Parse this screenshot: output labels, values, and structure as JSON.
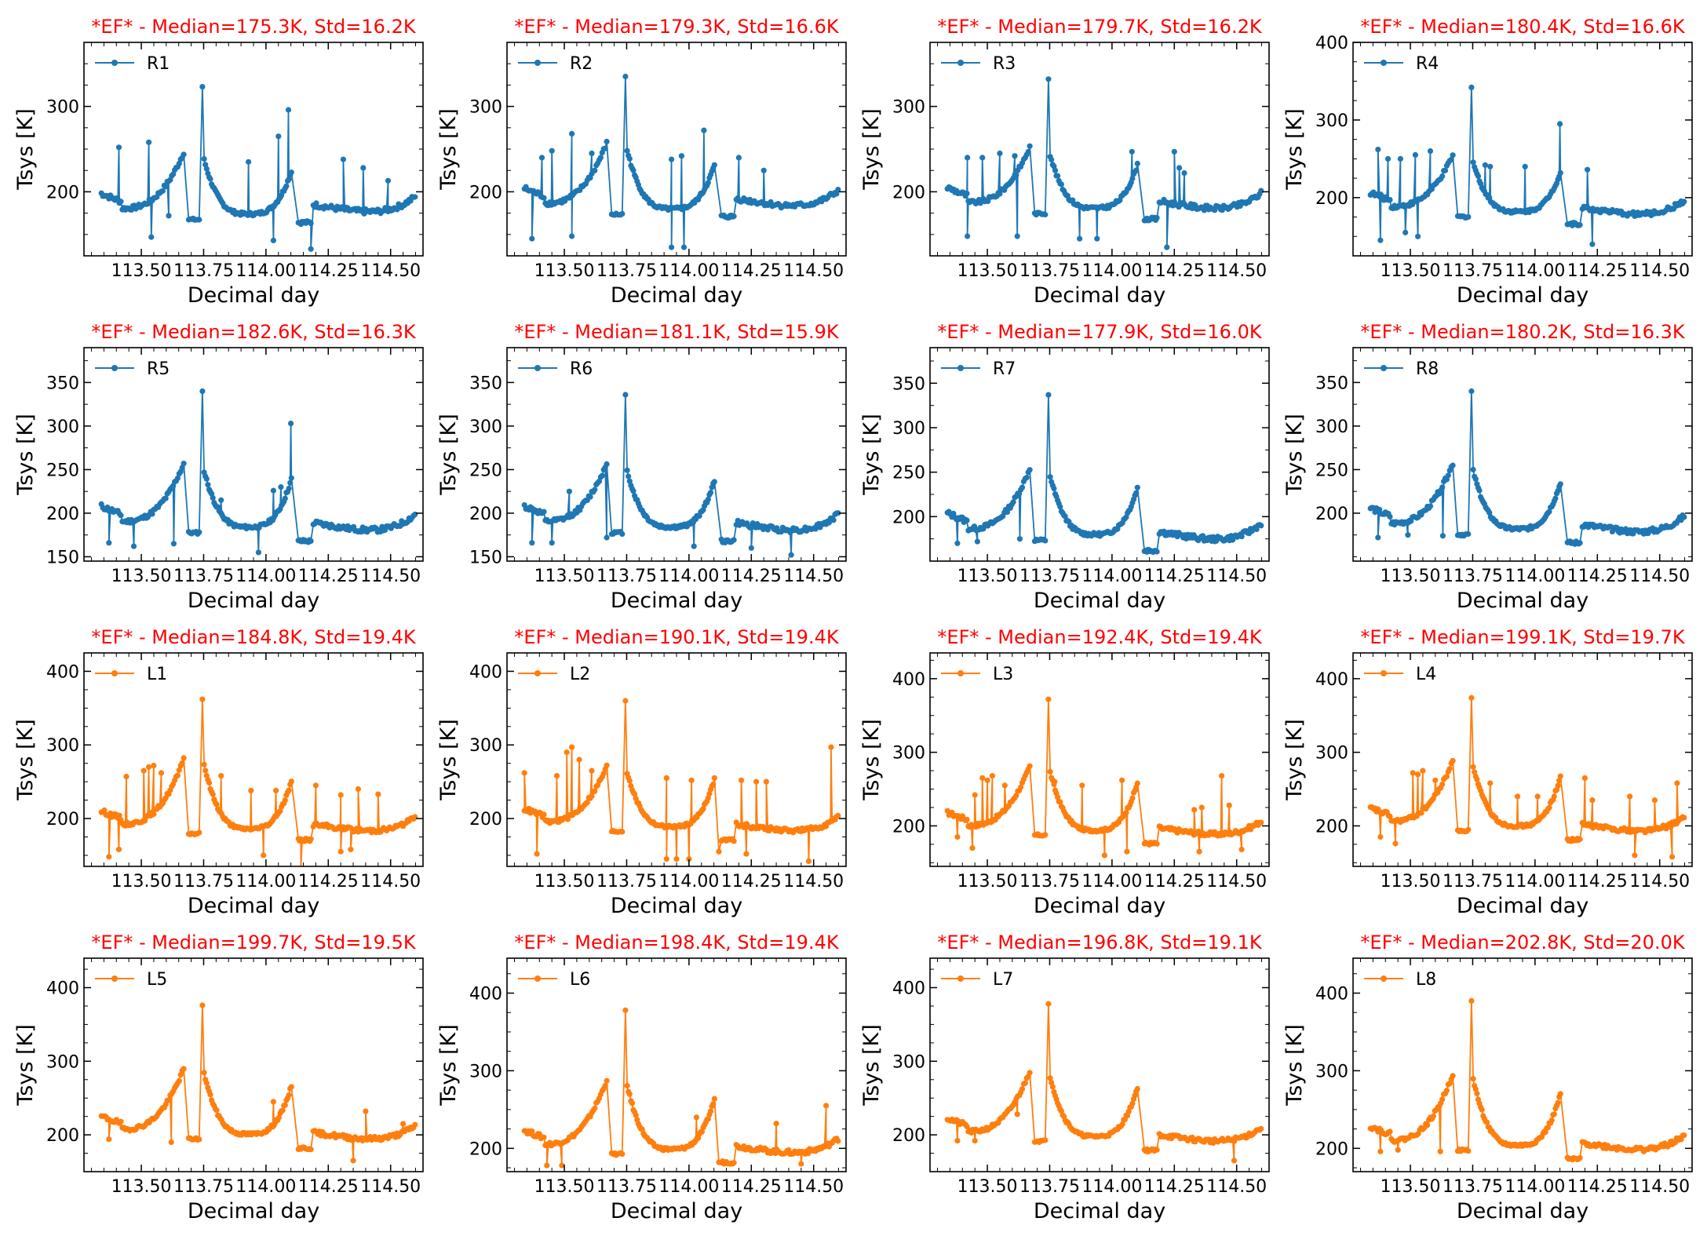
{
  "colors": {
    "R": "#1f77b4",
    "L": "#ff7f0e",
    "title": "#ff0000"
  },
  "chart_data": [
    {
      "type": "line",
      "channel": "R1",
      "title": "*EF* - Median=175.3K, Std=16.2K",
      "xlabel": "Decimal day",
      "ylabel": "Tsys [K]",
      "color": "#1f77b4",
      "ylim": [
        125,
        375
      ],
      "yticks": [
        200,
        300
      ],
      "xlim": [
        113.27,
        114.63
      ],
      "xticks": [
        "113.50",
        "113.75",
        "114.00",
        "114.25",
        "114.50"
      ],
      "median": 175.3,
      "std": 16.2,
      "peak1": 247,
      "peak2": 225,
      "floor": 170,
      "tail": 168,
      "spike": 323,
      "spikes": [
        [
          113.41,
          252
        ],
        [
          113.53,
          258
        ],
        [
          113.93,
          235
        ],
        [
          114.05,
          265
        ],
        [
          114.09,
          296
        ],
        [
          114.31,
          238
        ],
        [
          114.39,
          228
        ],
        [
          114.49,
          213
        ],
        [
          113.54,
          147
        ],
        [
          113.61,
          172
        ],
        [
          114.03,
          143
        ],
        [
          114.18,
          133
        ]
      ],
      "legend_label": "R1"
    },
    {
      "type": "line",
      "channel": "R2",
      "title": "*EF* - Median=179.3K, Std=16.6K",
      "xlabel": "Decimal day",
      "ylabel": "Tsys [K]",
      "color": "#1f77b4",
      "ylim": [
        125,
        375
      ],
      "yticks": [
        200,
        300
      ],
      "xlim": [
        113.27,
        114.63
      ],
      "xticks": [
        "113.50",
        "113.75",
        "114.00",
        "114.25",
        "114.50"
      ],
      "median": 179.3,
      "std": 16.6,
      "peak1": 258,
      "peak2": 232,
      "floor": 176,
      "tail": 175,
      "spike": 335,
      "spikes": [
        [
          113.41,
          240
        ],
        [
          113.45,
          248
        ],
        [
          113.53,
          268
        ],
        [
          113.61,
          245
        ],
        [
          113.93,
          238
        ],
        [
          113.97,
          242
        ],
        [
          114.06,
          272
        ],
        [
          114.2,
          240
        ],
        [
          114.3,
          225
        ],
        [
          113.37,
          145
        ],
        [
          113.53,
          148
        ],
        [
          113.93,
          135
        ],
        [
          113.98,
          135
        ]
      ],
      "legend_label": "R2"
    },
    {
      "type": "line",
      "channel": "R3",
      "title": "*EF* - Median=179.7K, Std=16.2K",
      "xlabel": "Decimal day",
      "ylabel": "Tsys [K]",
      "color": "#1f77b4",
      "ylim": [
        125,
        375
      ],
      "yticks": [
        200,
        300
      ],
      "xlim": [
        113.27,
        114.63
      ],
      "xticks": [
        "113.50",
        "113.75",
        "114.00",
        "114.25",
        "114.50"
      ],
      "median": 179.7,
      "std": 16.2,
      "peak1": 253,
      "peak2": 232,
      "floor": 177,
      "tail": 172,
      "spike": 332,
      "spikes": [
        [
          113.42,
          240
        ],
        [
          113.48,
          240
        ],
        [
          113.55,
          245
        ],
        [
          113.61,
          242
        ],
        [
          114.08,
          247
        ],
        [
          114.25,
          247
        ],
        [
          114.27,
          228
        ],
        [
          114.29,
          222
        ],
        [
          113.42,
          148
        ],
        [
          113.62,
          148
        ],
        [
          113.87,
          145
        ],
        [
          113.94,
          145
        ],
        [
          114.22,
          135
        ]
      ],
      "legend_label": "R3"
    },
    {
      "type": "line",
      "channel": "R4",
      "title": "*EF* - Median=180.4K, Std=16.6K",
      "xlabel": "Decimal day",
      "ylabel": "Tsys [K]",
      "color": "#1f77b4",
      "ylim": [
        125,
        400
      ],
      "yticks": [
        200,
        300,
        400
      ],
      "xlim": [
        113.27,
        114.63
      ],
      "xticks": [
        "113.50",
        "113.75",
        "114.00",
        "114.25",
        "114.50"
      ],
      "median": 180.4,
      "std": 16.6,
      "peak1": 255,
      "peak2": 233,
      "floor": 178,
      "tail": 170,
      "spike": 342,
      "spikes": [
        [
          113.37,
          262
        ],
        [
          113.41,
          250
        ],
        [
          113.46,
          250
        ],
        [
          113.52,
          255
        ],
        [
          113.58,
          260
        ],
        [
          113.8,
          242
        ],
        [
          113.82,
          240
        ],
        [
          113.96,
          240
        ],
        [
          114.1,
          295
        ],
        [
          114.21,
          236
        ],
        [
          113.38,
          145
        ],
        [
          113.48,
          155
        ],
        [
          113.53,
          150
        ],
        [
          114.23,
          140
        ]
      ],
      "legend_label": "R4"
    },
    {
      "type": "line",
      "channel": "R5",
      "title": "*EF* - Median=182.6K, Std=16.3K",
      "xlabel": "Decimal day",
      "ylabel": "Tsys [K]",
      "color": "#1f77b4",
      "ylim": [
        145,
        390
      ],
      "yticks": [
        150,
        200,
        250,
        300,
        350
      ],
      "xlim": [
        113.27,
        114.63
      ],
      "xticks": [
        "113.50",
        "113.75",
        "114.00",
        "114.25",
        "114.50"
      ],
      "median": 182.6,
      "std": 16.3,
      "peak1": 258,
      "peak2": 240,
      "floor": 180,
      "tail": 172,
      "spike": 340,
      "spikes": [
        [
          113.82,
          215
        ],
        [
          114.03,
          226
        ],
        [
          114.06,
          230
        ],
        [
          114.1,
          303
        ],
        [
          113.37,
          166
        ],
        [
          113.47,
          162
        ],
        [
          113.63,
          165
        ],
        [
          113.97,
          155
        ]
      ],
      "legend_label": "R5"
    },
    {
      "type": "line",
      "channel": "R6",
      "title": "*EF* - Median=181.1K, Std=15.9K",
      "xlabel": "Decimal day",
      "ylabel": "Tsys [K]",
      "color": "#1f77b4",
      "ylim": [
        145,
        390
      ],
      "yticks": [
        150,
        200,
        250,
        300,
        350
      ],
      "xlim": [
        113.27,
        114.63
      ],
      "xticks": [
        "113.50",
        "113.75",
        "114.00",
        "114.25",
        "114.50"
      ],
      "median": 181.1,
      "std": 15.9,
      "peak1": 258,
      "peak2": 238,
      "floor": 180,
      "tail": 172,
      "spike": 336,
      "spikes": [
        [
          113.52,
          225
        ],
        [
          113.37,
          166
        ],
        [
          113.45,
          166
        ],
        [
          113.67,
          172
        ],
        [
          114.02,
          162
        ],
        [
          114.25,
          160
        ],
        [
          114.41,
          152
        ]
      ],
      "legend_label": "R6"
    },
    {
      "type": "line",
      "channel": "R7",
      "title": "*EF* - Median=177.9K, Std=16.0K",
      "xlabel": "Decimal day",
      "ylabel": "Tsys [K]",
      "color": "#1f77b4",
      "ylim": [
        150,
        390
      ],
      "yticks": [
        200,
        250,
        300,
        350
      ],
      "xlim": [
        113.27,
        114.63
      ],
      "xticks": [
        "113.50",
        "113.75",
        "114.00",
        "114.25",
        "114.50"
      ],
      "median": 177.9,
      "std": 16.0,
      "peak1": 255,
      "peak2": 233,
      "floor": 176,
      "tail": 166,
      "spike": 337,
      "spikes": [
        [
          113.38,
          170
        ],
        [
          113.46,
          172
        ],
        [
          113.63,
          175
        ]
      ],
      "legend_label": "R7"
    },
    {
      "type": "line",
      "channel": "R8",
      "title": "*EF* - Median=180.2K, Std=16.3K",
      "xlabel": "Decimal day",
      "ylabel": "Tsys [K]",
      "color": "#1f77b4",
      "ylim": [
        145,
        390
      ],
      "yticks": [
        200,
        250,
        300,
        350
      ],
      "xlim": [
        113.27,
        114.63
      ],
      "xticks": [
        "113.50",
        "113.75",
        "114.00",
        "114.25",
        "114.50"
      ],
      "median": 180.2,
      "std": 16.3,
      "peak1": 258,
      "peak2": 236,
      "floor": 178,
      "tail": 170,
      "spike": 340,
      "spikes": [
        [
          113.37,
          172
        ],
        [
          113.49,
          175
        ],
        [
          113.63,
          174
        ]
      ],
      "legend_label": "R8"
    },
    {
      "type": "line",
      "channel": "L1",
      "title": "*EF* - Median=184.8K, Std=19.4K",
      "xlabel": "Decimal day",
      "ylabel": "Tsys [K]",
      "color": "#ff7f0e",
      "ylim": [
        135,
        425
      ],
      "yticks": [
        200,
        300,
        400
      ],
      "xlim": [
        113.27,
        114.63
      ],
      "xticks": [
        "113.50",
        "113.75",
        "114.00",
        "114.25",
        "114.50"
      ],
      "median": 184.8,
      "std": 19.4,
      "peak1": 282,
      "peak2": 252,
      "floor": 182,
      "tail": 175,
      "spike": 362,
      "spikes": [
        [
          113.44,
          257
        ],
        [
          113.51,
          265
        ],
        [
          113.53,
          270
        ],
        [
          113.55,
          272
        ],
        [
          113.58,
          262
        ],
        [
          113.82,
          258
        ],
        [
          113.94,
          238
        ],
        [
          114.04,
          238
        ],
        [
          114.2,
          245
        ],
        [
          114.3,
          232
        ],
        [
          114.37,
          240
        ],
        [
          114.45,
          233
        ],
        [
          113.37,
          148
        ],
        [
          113.41,
          158
        ],
        [
          113.99,
          150
        ],
        [
          114.14,
          132
        ],
        [
          114.3,
          155
        ],
        [
          114.34,
          158
        ]
      ],
      "legend_label": "L1"
    },
    {
      "type": "line",
      "channel": "L2",
      "title": "*EF* - Median=190.1K, Std=19.4K",
      "xlabel": "Decimal day",
      "ylabel": "Tsys [K]",
      "color": "#ff7f0e",
      "ylim": [
        135,
        425
      ],
      "yticks": [
        200,
        300,
        400
      ],
      "xlim": [
        113.27,
        114.63
      ],
      "xticks": [
        "113.50",
        "113.75",
        "114.00",
        "114.25",
        "114.50"
      ],
      "median": 190.1,
      "std": 19.4,
      "peak1": 272,
      "peak2": 255,
      "floor": 185,
      "tail": 175,
      "spike": 360,
      "spikes": [
        [
          113.34,
          262
        ],
        [
          113.47,
          258
        ],
        [
          113.51,
          290
        ],
        [
          113.53,
          297
        ],
        [
          113.56,
          280
        ],
        [
          113.61,
          265
        ],
        [
          113.91,
          255
        ],
        [
          114.01,
          252
        ],
        [
          114.21,
          252
        ],
        [
          114.27,
          250
        ],
        [
          114.31,
          250
        ],
        [
          114.57,
          297
        ],
        [
          113.39,
          152
        ],
        [
          113.91,
          145
        ],
        [
          113.95,
          145
        ],
        [
          114.0,
          145
        ],
        [
          114.12,
          155
        ],
        [
          114.23,
          152
        ],
        [
          114.48,
          142
        ]
      ],
      "legend_label": "L2"
    },
    {
      "type": "line",
      "channel": "L3",
      "title": "*EF* - Median=192.4K, Std=19.4K",
      "xlabel": "Decimal day",
      "ylabel": "Tsys [K]",
      "color": "#ff7f0e",
      "ylim": [
        145,
        435
      ],
      "yticks": [
        200,
        300,
        400
      ],
      "xlim": [
        113.27,
        114.63
      ],
      "xticks": [
        "113.50",
        "113.75",
        "114.00",
        "114.25",
        "114.50"
      ],
      "median": 192.4,
      "std": 19.4,
      "peak1": 282,
      "peak2": 260,
      "floor": 190,
      "tail": 180,
      "spike": 372,
      "spikes": [
        [
          113.45,
          242
        ],
        [
          113.48,
          265
        ],
        [
          113.5,
          262
        ],
        [
          113.52,
          268
        ],
        [
          113.57,
          255
        ],
        [
          113.77,
          260
        ],
        [
          113.88,
          255
        ],
        [
          114.04,
          262
        ],
        [
          114.33,
          222
        ],
        [
          114.36,
          225
        ],
        [
          114.44,
          268
        ],
        [
          114.47,
          228
        ],
        [
          113.38,
          185
        ],
        [
          113.44,
          170
        ],
        [
          113.97,
          160
        ],
        [
          114.06,
          165
        ],
        [
          114.35,
          165
        ],
        [
          114.52,
          168
        ]
      ],
      "legend_label": "L3"
    },
    {
      "type": "line",
      "channel": "L4",
      "title": "*EF* - Median=199.1K, Std=19.7K",
      "xlabel": "Decimal day",
      "ylabel": "Tsys [K]",
      "color": "#ff7f0e",
      "ylim": [
        145,
        435
      ],
      "yticks": [
        200,
        300,
        400
      ],
      "xlim": [
        113.27,
        114.63
      ],
      "xticks": [
        "113.50",
        "113.75",
        "114.00",
        "114.25",
        "114.50"
      ],
      "median": 199.1,
      "std": 19.7,
      "peak1": 290,
      "peak2": 268,
      "floor": 196,
      "tail": 185,
      "spike": 374,
      "spikes": [
        [
          113.51,
          272
        ],
        [
          113.53,
          270
        ],
        [
          113.55,
          275
        ],
        [
          113.6,
          262
        ],
        [
          113.82,
          258
        ],
        [
          113.93,
          240
        ],
        [
          114.01,
          240
        ],
        [
          114.2,
          265
        ],
        [
          114.23,
          235
        ],
        [
          114.38,
          240
        ],
        [
          114.48,
          235
        ],
        [
          114.57,
          258
        ],
        [
          113.38,
          185
        ],
        [
          113.44,
          176
        ],
        [
          114.4,
          160
        ],
        [
          114.55,
          158
        ]
      ],
      "legend_label": "L4"
    },
    {
      "type": "line",
      "channel": "L5",
      "title": "*EF* - Median=199.7K, Std=19.5K",
      "xlabel": "Decimal day",
      "ylabel": "Tsys [K]",
      "color": "#ff7f0e",
      "ylim": [
        150,
        440
      ],
      "yticks": [
        200,
        300,
        400
      ],
      "xlim": [
        113.27,
        114.63
      ],
      "xticks": [
        "113.50",
        "113.75",
        "114.00",
        "114.25",
        "114.50"
      ],
      "median": 199.7,
      "std": 19.5,
      "peak1": 292,
      "peak2": 268,
      "floor": 197,
      "tail": 186,
      "spike": 376,
      "spikes": [
        [
          114.03,
          245
        ],
        [
          114.4,
          232
        ],
        [
          114.55,
          215
        ],
        [
          113.37,
          194
        ],
        [
          113.62,
          190
        ],
        [
          114.35,
          165
        ]
      ],
      "legend_label": "L5"
    },
    {
      "type": "line",
      "channel": "L6",
      "title": "*EF* - Median=198.4K, Std=19.4K",
      "xlabel": "Decimal day",
      "ylabel": "Tsys [K]",
      "color": "#ff7f0e",
      "ylim": [
        170,
        445
      ],
      "yticks": [
        200,
        300,
        400
      ],
      "xlim": [
        113.27,
        114.63
      ],
      "xticks": [
        "113.50",
        "113.75",
        "114.00",
        "114.25",
        "114.50"
      ],
      "median": 198.4,
      "std": 19.4,
      "peak1": 290,
      "peak2": 265,
      "floor": 195,
      "tail": 186,
      "spike": 378,
      "spikes": [
        [
          114.03,
          240
        ],
        [
          114.55,
          255
        ],
        [
          114.35,
          232
        ],
        [
          113.43,
          178
        ],
        [
          113.49,
          178
        ],
        [
          114.12,
          182
        ],
        [
          114.45,
          180
        ]
      ],
      "legend_label": "L6"
    },
    {
      "type": "line",
      "channel": "L7",
      "title": "*EF* - Median=196.8K, Std=19.1K",
      "xlabel": "Decimal day",
      "ylabel": "Tsys [K]",
      "color": "#ff7f0e",
      "ylim": [
        150,
        440
      ],
      "yticks": [
        200,
        300,
        400
      ],
      "xlim": [
        113.27,
        114.63
      ],
      "xticks": [
        "113.50",
        "113.75",
        "114.00",
        "114.25",
        "114.50"
      ],
      "median": 196.8,
      "std": 19.1,
      "peak1": 288,
      "peak2": 266,
      "floor": 194,
      "tail": 183,
      "spike": 378,
      "spikes": [
        [
          113.62,
          228
        ],
        [
          113.38,
          192
        ],
        [
          113.45,
          192
        ],
        [
          114.49,
          165
        ]
      ],
      "legend_label": "L7"
    },
    {
      "type": "line",
      "channel": "L8",
      "title": "*EF* - Median=202.8K, Std=20.0K",
      "xlabel": "Decimal day",
      "ylabel": "Tsys [K]",
      "color": "#ff7f0e",
      "ylim": [
        170,
        445
      ],
      "yticks": [
        200,
        300,
        400
      ],
      "xlim": [
        113.27,
        114.63
      ],
      "xticks": [
        "113.50",
        "113.75",
        "114.00",
        "114.25",
        "114.50"
      ],
      "median": 202.8,
      "std": 20.0,
      "peak1": 298,
      "peak2": 272,
      "floor": 200,
      "tail": 190,
      "spike": 390,
      "spikes": [
        [
          113.38,
          196
        ],
        [
          113.45,
          198
        ],
        [
          113.62,
          196
        ],
        [
          114.55,
          205
        ]
      ],
      "legend_label": "L8"
    }
  ]
}
